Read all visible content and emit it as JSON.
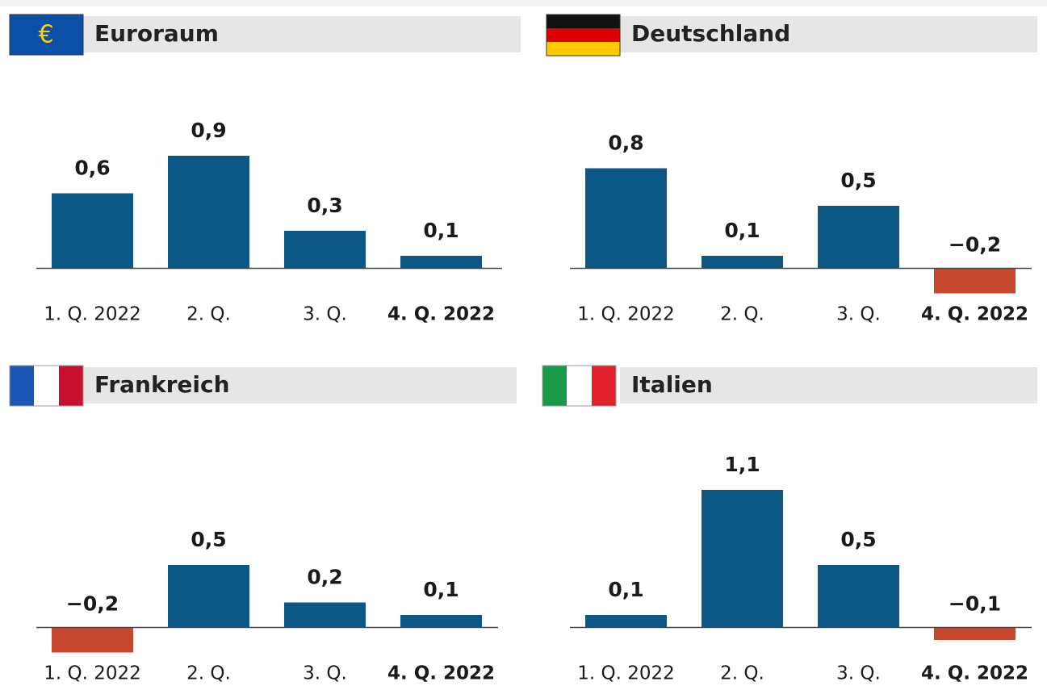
{
  "chart_data": [
    {
      "type": "bar",
      "title": "Euroraum",
      "flag_symbol": "€",
      "categories": [
        "1. Q. 2022",
        "2. Q.",
        "3. Q.",
        "4. Q. 2022"
      ],
      "values": [
        0.6,
        0.9,
        0.3,
        0.1
      ],
      "value_labels": [
        "0,6",
        "0,9",
        "0,3",
        "0,1"
      ],
      "color": "#0b5786",
      "negative_color": "#c8472f",
      "ylim": [
        -0.3,
        1.5
      ]
    },
    {
      "type": "bar",
      "title": "Deutschland",
      "categories": [
        "1. Q. 2022",
        "2. Q.",
        "3. Q.",
        "4. Q. 2022"
      ],
      "values": [
        0.8,
        0.1,
        0.5,
        -0.2
      ],
      "value_labels": [
        "0,8",
        "0,1",
        "0,5",
        "−0,2"
      ],
      "color": "#0b5786",
      "negative_color": "#c8472f",
      "ylim": [
        -0.3,
        1.5
      ]
    },
    {
      "type": "bar",
      "title": "Frankreich",
      "categories": [
        "1. Q. 2022",
        "2. Q.",
        "3. Q.",
        "4. Q. 2022"
      ],
      "values": [
        -0.2,
        0.5,
        0.2,
        0.1
      ],
      "value_labels": [
        "−0,2",
        "0,5",
        "0,2",
        "0,1"
      ],
      "color": "#0b5786",
      "negative_color": "#c8472f",
      "ylim": [
        -0.3,
        1.5
      ]
    },
    {
      "type": "bar",
      "title": "Italien",
      "categories": [
        "1. Q. 2022",
        "2. Q.",
        "3. Q.",
        "4. Q. 2022"
      ],
      "values": [
        0.1,
        1.1,
        0.5,
        -0.1
      ],
      "value_labels": [
        "0,1",
        "1,1",
        "0,5",
        "−0,1"
      ],
      "color": "#0b5786",
      "negative_color": "#c8472f",
      "ylim": [
        -0.3,
        1.5
      ]
    }
  ]
}
